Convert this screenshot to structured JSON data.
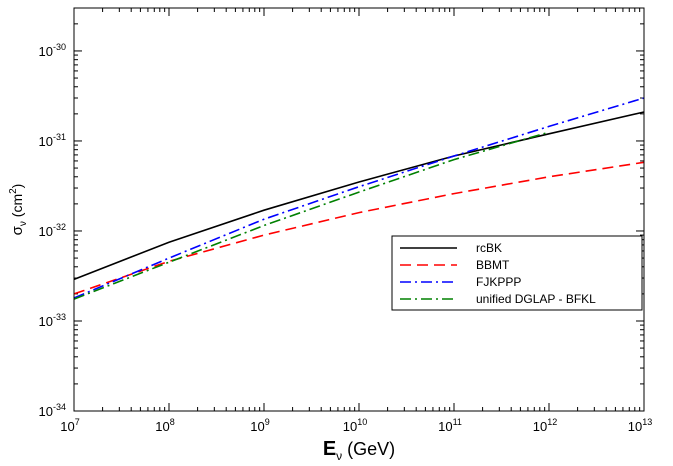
{
  "chart_data": {
    "type": "line",
    "xlabel": {
      "base": "E",
      "sub": "ν",
      "unit": " (GeV)"
    },
    "ylabel": {
      "base": "σ",
      "sub": "ν",
      "unit_pre": " (cm",
      "unit_sup": "2",
      "unit_post": ")"
    },
    "x_scale": "log",
    "y_scale": "log",
    "xlim": [
      10000000,
      10000000000000
    ],
    "ylim": [
      1e-34,
      3e-30
    ],
    "x_ticks": [
      {
        "base": "10",
        "exp": "7"
      },
      {
        "base": "10",
        "exp": "8"
      },
      {
        "base": "10",
        "exp": "9"
      },
      {
        "base": "10",
        "exp": "10"
      },
      {
        "base": "10",
        "exp": "11"
      },
      {
        "base": "10",
        "exp": "12"
      },
      {
        "base": "10",
        "exp": "13"
      }
    ],
    "y_ticks": [
      {
        "base": "10",
        "exp": "-34"
      },
      {
        "base": "10",
        "exp": "-33"
      },
      {
        "base": "10",
        "exp": "-32"
      },
      {
        "base": "10",
        "exp": "-31"
      },
      {
        "base": "10",
        "exp": "-30"
      }
    ],
    "grid": false,
    "legend_position": "center-right",
    "series": [
      {
        "name": "rcBK",
        "color": "#000000",
        "dash": "solid",
        "x": [
          10000000,
          100000000,
          1000000000,
          10000000000,
          100000000000,
          1000000000000,
          10000000000000
        ],
        "y": [
          2.9e-33,
          7.5e-33,
          1.7e-32,
          3.5e-32,
          6.8e-32,
          1.2e-31,
          2.1e-31
        ]
      },
      {
        "name": "BBMT",
        "color": "#ff0000",
        "dash": "dashed",
        "x": [
          10000000,
          100000000,
          1000000000,
          10000000000,
          100000000000,
          1000000000000,
          10000000000000
        ],
        "y": [
          2e-33,
          4.6e-33,
          9e-33,
          1.6e-32,
          2.6e-32,
          4e-32,
          5.8e-32
        ]
      },
      {
        "name": "FJKPPP",
        "color": "#0000ff",
        "dash": "dash-dot",
        "x": [
          10000000,
          100000000,
          1000000000,
          10000000000,
          100000000000,
          1000000000000,
          10000000000000
        ],
        "y": [
          1.8e-33,
          5e-33,
          1.35e-32,
          3.1e-32,
          6.8e-32,
          1.45e-31,
          3e-31
        ]
      },
      {
        "name": "unified DGLAP - BFKL",
        "color": "#008000",
        "dash": "dash-dot",
        "x": [
          10000000,
          100000000,
          1000000000,
          10000000000,
          100000000000,
          1000000000000
        ],
        "y": [
          1.75e-33,
          4.5e-33,
          1.15e-32,
          2.7e-32,
          6.2e-32,
          1.25e-31
        ]
      }
    ]
  }
}
